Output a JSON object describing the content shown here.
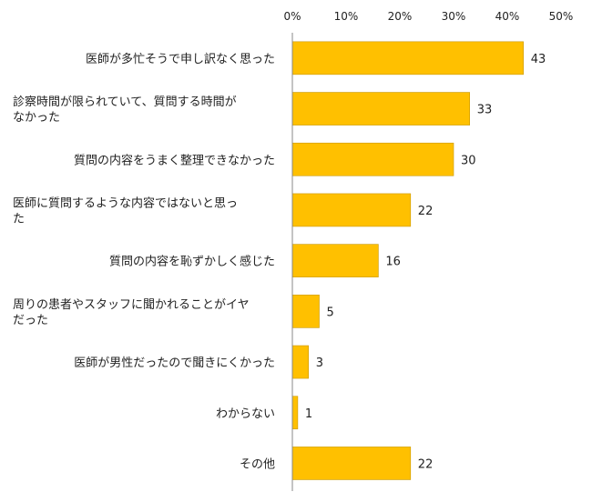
{
  "chart_data": {
    "type": "bar",
    "orientation": "horizontal",
    "categories": [
      [
        "医師が多忙そうで申し訳なく思った"
      ],
      [
        "診察時間が限られていて、質問する時間が",
        "なかった"
      ],
      [
        "質問の内容をうまく整理できなかった"
      ],
      [
        "医師に質問するような内容ではないと思っ",
        "た"
      ],
      [
        "質問の内容を恥ずかしく感じた"
      ],
      [
        "周りの患者やスタッフに聞かれることがイヤ",
        "だった"
      ],
      [
        "医師が男性だったので聞きにくかった"
      ],
      [
        "わからない"
      ],
      [
        "その他"
      ]
    ],
    "values": [
      43,
      33,
      30,
      22,
      16,
      5,
      3,
      1,
      22
    ],
    "xlim": [
      0,
      50
    ],
    "ticks": [
      "0%",
      "10%",
      "20%",
      "30%",
      "40%",
      "50%"
    ],
    "tick_values": [
      0,
      10,
      20,
      30,
      40,
      50
    ],
    "grid": false,
    "legend": "none",
    "bar_color": "#FFC000",
    "bar_edge_color": "#C99700"
  }
}
